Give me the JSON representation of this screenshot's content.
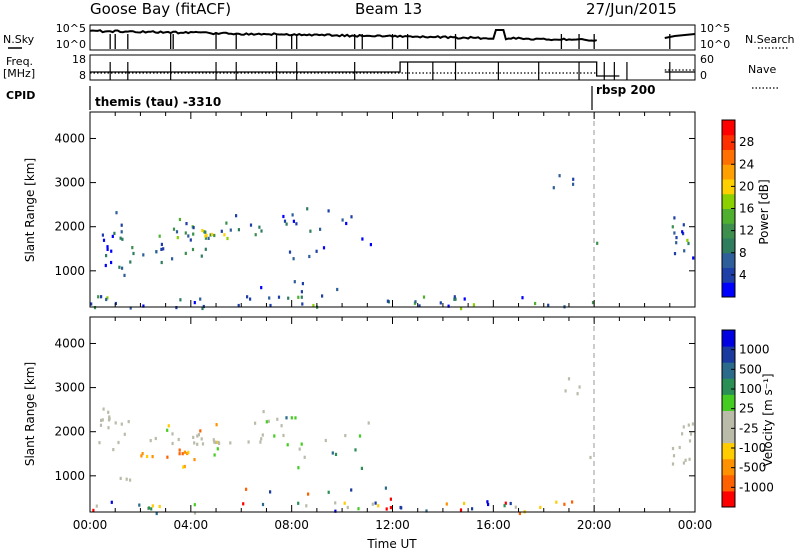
{
  "header": {
    "station": "Goose Bay (fitACF)",
    "beam": "Beam 13",
    "date": "27/Jun/2015"
  },
  "side_labels": {
    "nsky": "N.Sky",
    "nsearch": "N.Search",
    "freq_line1": "Freq.",
    "freq_line2": "[MHz]",
    "nave": "Nave",
    "cpid": "CPID"
  },
  "cpid_segments": [
    {
      "label": "themis (tau) -3310",
      "start_hour": 0.0,
      "end_hour": 20.0
    },
    {
      "label": "rbsp 200",
      "start_hour": 20.0,
      "end_hour": 22.0
    }
  ],
  "colors": {
    "power_scale": [
      "#0000ff",
      "#1f3fa8",
      "#2f5f9a",
      "#2e7d5f",
      "#3c8f4c",
      "#4fb030",
      "#8bd000",
      "#ffd000",
      "#ffa000",
      "#ff7000",
      "#ff3000",
      "#ff0000"
    ],
    "velocity_scale": [
      "#ff0000",
      "#ff6000",
      "#ff9000",
      "#ffcc00",
      "#bbbbaa",
      "#bbbbaa",
      "#44cc22",
      "#2a8f55",
      "#2a6a8a",
      "#1a3aa0",
      "#0000e0"
    ]
  },
  "chart_data": [
    {
      "type": "line",
      "name": "sky-noise",
      "yticks_left": [
        "10^5",
        "10^0"
      ],
      "yticks_right": [
        "10^5",
        "10^0"
      ],
      "yscale": "log",
      "ylim": [
        1,
        100000
      ],
      "x_range": [
        0,
        24
      ]
    },
    {
      "type": "line",
      "name": "frequency-nave",
      "yticks_left": [
        "18",
        "8"
      ],
      "yticks_right": [
        "60",
        "0"
      ],
      "ylim_left": [
        8,
        18
      ],
      "ylim_right": [
        0,
        60
      ],
      "x_range": [
        0,
        24
      ]
    },
    {
      "type": "heatmap",
      "name": "power",
      "ylabel": "Slant Range [km]",
      "yticks": [
        1000,
        2000,
        3000,
        4000
      ],
      "ylim": [
        180,
        4600
      ],
      "xlim": [
        0,
        24
      ],
      "colorbar_label": "Power [dB]",
      "colorbar_ticks": [
        "28",
        "24",
        "20",
        "16",
        "12",
        "8",
        "4"
      ],
      "data_gap_hours": [
        20.4,
        22.8
      ],
      "dashed_line_hour": 20.0
    },
    {
      "type": "heatmap",
      "name": "velocity",
      "ylabel": "Slant Range [km]",
      "xlabel": "Time UT",
      "yticks": [
        1000,
        2000,
        3000,
        4000
      ],
      "ylim": [
        180,
        4600
      ],
      "xlim": [
        0,
        24
      ],
      "xticks": [
        "00:00",
        "04:00",
        "08:00",
        "12:00",
        "16:00",
        "20:00",
        "00:00"
      ],
      "colorbar_label": "Velocity [m s^-1]",
      "colorbar_ticks": [
        "1000",
        "500",
        "100",
        "25",
        "-25",
        "-100",
        "-500",
        "-1000"
      ],
      "data_gap_hours": [
        20.4,
        22.8
      ],
      "dashed_line_hour": 20.0
    }
  ]
}
